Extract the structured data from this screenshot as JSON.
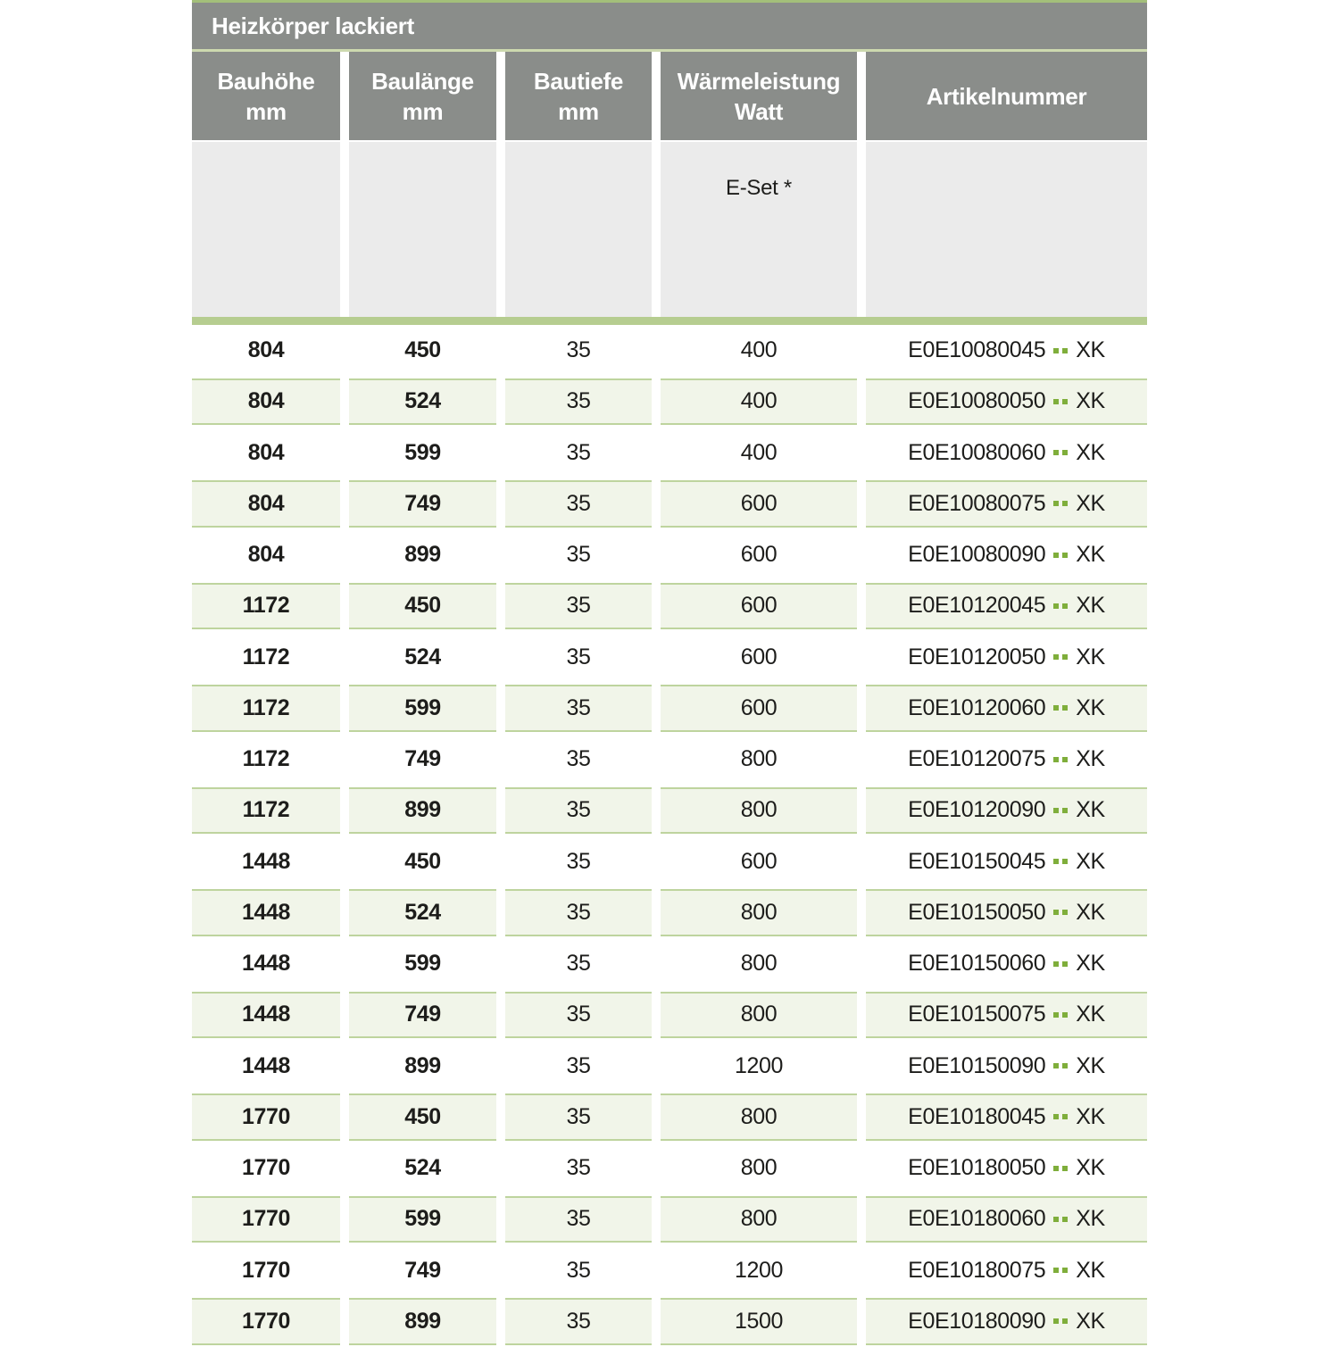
{
  "table": {
    "title": "Heizkörper lackiert",
    "columns": [
      {
        "label": "Bauhöhe",
        "unit": "mm"
      },
      {
        "label": "Baulänge",
        "unit": "mm"
      },
      {
        "label": "Bautiefe",
        "unit": "mm"
      },
      {
        "label": "Wärmeleistung",
        "unit": "Watt"
      },
      {
        "label": "Artikelnummer",
        "unit": ""
      }
    ],
    "subheader": {
      "eset_label": "E-Set *"
    },
    "artikel_separator": "..",
    "colors": {
      "header_gray": "#8a8d8a",
      "subheader_gray": "#ebebeb",
      "green_bar": "#b6cd90",
      "row_tint": "#f1f5e9",
      "row_tint_border": "#bed49e",
      "dot_green": "#7fae3b"
    },
    "rows": [
      {
        "bauhoehe": "804",
        "baulaenge": "450",
        "bautiefe": "35",
        "watt": "400",
        "artikel": "E0E10080045",
        "artikel_suffix": "XK"
      },
      {
        "bauhoehe": "804",
        "baulaenge": "524",
        "bautiefe": "35",
        "watt": "400",
        "artikel": "E0E10080050",
        "artikel_suffix": "XK"
      },
      {
        "bauhoehe": "804",
        "baulaenge": "599",
        "bautiefe": "35",
        "watt": "400",
        "artikel": "E0E10080060",
        "artikel_suffix": "XK"
      },
      {
        "bauhoehe": "804",
        "baulaenge": "749",
        "bautiefe": "35",
        "watt": "600",
        "artikel": "E0E10080075",
        "artikel_suffix": "XK"
      },
      {
        "bauhoehe": "804",
        "baulaenge": "899",
        "bautiefe": "35",
        "watt": "600",
        "artikel": "E0E10080090",
        "artikel_suffix": "XK"
      },
      {
        "bauhoehe": "1172",
        "baulaenge": "450",
        "bautiefe": "35",
        "watt": "600",
        "artikel": "E0E10120045",
        "artikel_suffix": "XK"
      },
      {
        "bauhoehe": "1172",
        "baulaenge": "524",
        "bautiefe": "35",
        "watt": "600",
        "artikel": "E0E10120050",
        "artikel_suffix": "XK"
      },
      {
        "bauhoehe": "1172",
        "baulaenge": "599",
        "bautiefe": "35",
        "watt": "600",
        "artikel": "E0E10120060",
        "artikel_suffix": "XK"
      },
      {
        "bauhoehe": "1172",
        "baulaenge": "749",
        "bautiefe": "35",
        "watt": "800",
        "artikel": "E0E10120075",
        "artikel_suffix": "XK"
      },
      {
        "bauhoehe": "1172",
        "baulaenge": "899",
        "bautiefe": "35",
        "watt": "800",
        "artikel": "E0E10120090",
        "artikel_suffix": "XK"
      },
      {
        "bauhoehe": "1448",
        "baulaenge": "450",
        "bautiefe": "35",
        "watt": "600",
        "artikel": "E0E10150045",
        "artikel_suffix": "XK"
      },
      {
        "bauhoehe": "1448",
        "baulaenge": "524",
        "bautiefe": "35",
        "watt": "800",
        "artikel": "E0E10150050",
        "artikel_suffix": "XK"
      },
      {
        "bauhoehe": "1448",
        "baulaenge": "599",
        "bautiefe": "35",
        "watt": "800",
        "artikel": "E0E10150060",
        "artikel_suffix": "XK"
      },
      {
        "bauhoehe": "1448",
        "baulaenge": "749",
        "bautiefe": "35",
        "watt": "800",
        "artikel": "E0E10150075",
        "artikel_suffix": "XK"
      },
      {
        "bauhoehe": "1448",
        "baulaenge": "899",
        "bautiefe": "35",
        "watt": "1200",
        "artikel": "E0E10150090",
        "artikel_suffix": "XK"
      },
      {
        "bauhoehe": "1770",
        "baulaenge": "450",
        "bautiefe": "35",
        "watt": "800",
        "artikel": "E0E10180045",
        "artikel_suffix": "XK"
      },
      {
        "bauhoehe": "1770",
        "baulaenge": "524",
        "bautiefe": "35",
        "watt": "800",
        "artikel": "E0E10180050",
        "artikel_suffix": "XK"
      },
      {
        "bauhoehe": "1770",
        "baulaenge": "599",
        "bautiefe": "35",
        "watt": "800",
        "artikel": "E0E10180060",
        "artikel_suffix": "XK"
      },
      {
        "bauhoehe": "1770",
        "baulaenge": "749",
        "bautiefe": "35",
        "watt": "1200",
        "artikel": "E0E10180075",
        "artikel_suffix": "XK"
      },
      {
        "bauhoehe": "1770",
        "baulaenge": "899",
        "bautiefe": "35",
        "watt": "1500",
        "artikel": "E0E10180090",
        "artikel_suffix": "XK"
      }
    ]
  }
}
